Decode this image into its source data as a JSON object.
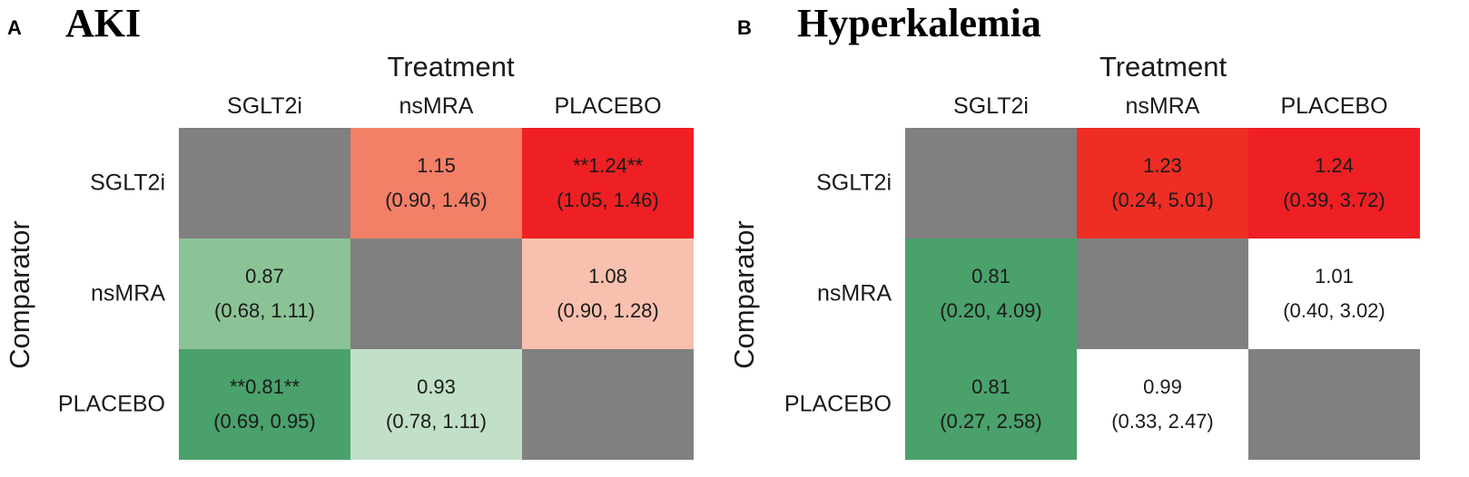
{
  "chart_data": [
    {
      "type": "heatmap",
      "panel_letter": "A",
      "title": "AKI",
      "xlabel": "Treatment",
      "ylabel": "Comparator",
      "columns": [
        "SGLT2i",
        "nsMRA",
        "PLACEBO"
      ],
      "rows": [
        "SGLT2i",
        "nsMRA",
        "PLACEBO"
      ],
      "cells": [
        [
          {
            "value": null,
            "ci": null,
            "label": "",
            "color": "#808080"
          },
          {
            "value": 1.15,
            "ci": [
              0.9,
              1.46
            ],
            "label": "1.15",
            "ci_text": "(0.90, 1.46)",
            "color": "#f37f67"
          },
          {
            "value": 1.24,
            "ci": [
              1.05,
              1.46
            ],
            "label": "**1.24**",
            "ci_text": "(1.05, 1.46)",
            "color": "#ee2024"
          }
        ],
        [
          {
            "value": 0.87,
            "ci": [
              0.68,
              1.11
            ],
            "label": "0.87",
            "ci_text": "(0.68, 1.11)",
            "color": "#8cc396"
          },
          {
            "value": null,
            "ci": null,
            "label": "",
            "color": "#808080"
          },
          {
            "value": 1.08,
            "ci": [
              0.9,
              1.28
            ],
            "label": "1.08",
            "ci_text": "(0.90, 1.28)",
            "color": "#f8c0ae"
          }
        ],
        [
          {
            "value": 0.81,
            "ci": [
              0.69,
              0.95
            ],
            "label": "**0.81**",
            "ci_text": "(0.69, 0.95)",
            "color": "#4aa16b"
          },
          {
            "value": 0.93,
            "ci": [
              0.78,
              1.11
            ],
            "label": "0.93",
            "ci_text": "(0.78, 1.11)",
            "color": "#c2e0c8"
          },
          {
            "value": null,
            "ci": null,
            "label": "",
            "color": "#808080"
          }
        ]
      ]
    },
    {
      "type": "heatmap",
      "panel_letter": "B",
      "title": "Hyperkalemia",
      "xlabel": "Treatment",
      "ylabel": "Comparator",
      "columns": [
        "SGLT2i",
        "nsMRA",
        "PLACEBO"
      ],
      "rows": [
        "SGLT2i",
        "nsMRA",
        "PLACEBO"
      ],
      "cells": [
        [
          {
            "value": null,
            "ci": null,
            "label": "",
            "color": "#808080"
          },
          {
            "value": 1.23,
            "ci": [
              0.24,
              5.01
            ],
            "label": "1.23",
            "ci_text": "(0.24, 5.01)",
            "color": "#ee2e24"
          },
          {
            "value": 1.24,
            "ci": [
              0.39,
              3.72
            ],
            "label": "1.24",
            "ci_text": "(0.39, 3.72)",
            "color": "#ee2024"
          }
        ],
        [
          {
            "value": 0.81,
            "ci": [
              0.2,
              4.09
            ],
            "label": "0.81",
            "ci_text": "(0.20, 4.09)",
            "color": "#4aa16b"
          },
          {
            "value": null,
            "ci": null,
            "label": "",
            "color": "#808080"
          },
          {
            "value": 1.01,
            "ci": [
              0.4,
              3.02
            ],
            "label": "1.01",
            "ci_text": "(0.40, 3.02)",
            "color": "#ffffff"
          }
        ],
        [
          {
            "value": 0.81,
            "ci": [
              0.27,
              2.58
            ],
            "label": "0.81",
            "ci_text": "(0.27, 2.58)",
            "color": "#4aa16b"
          },
          {
            "value": 0.99,
            "ci": [
              0.33,
              2.47
            ],
            "label": "0.99",
            "ci_text": "(0.33, 2.47)",
            "color": "#ffffff"
          },
          {
            "value": null,
            "ci": null,
            "label": "",
            "color": "#808080"
          }
        ]
      ]
    }
  ]
}
